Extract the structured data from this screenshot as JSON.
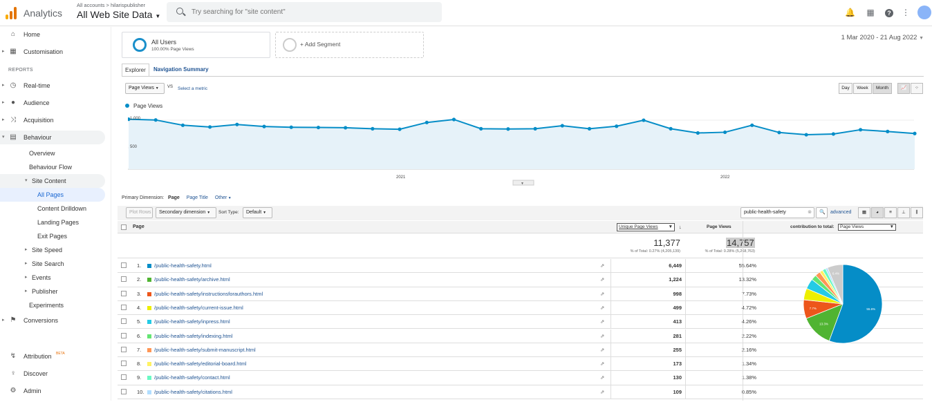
{
  "topbar": {
    "app_name": "Analytics",
    "crumb": "All accounts > hilarispublisher",
    "property": "All Web Site Data",
    "search_placeholder": "Try searching for \"site content\""
  },
  "sidebar": {
    "home": "Home",
    "customisation": "Customisation",
    "reports_header": "REPORTS",
    "realtime": "Real-time",
    "audience": "Audience",
    "acquisition": "Acquisition",
    "behaviour": "Behaviour",
    "overview": "Overview",
    "behaviour_flow": "Behaviour Flow",
    "site_content": "Site Content",
    "all_pages": "All Pages",
    "content_drilldown": "Content Drilldown",
    "landing_pages": "Landing Pages",
    "exit_pages": "Exit Pages",
    "site_speed": "Site Speed",
    "site_search": "Site Search",
    "events": "Events",
    "publisher": "Publisher",
    "experiments": "Experiments",
    "conversions": "Conversions",
    "attribution": "Attribution",
    "attribution_badge": "BETA",
    "discover": "Discover",
    "admin": "Admin"
  },
  "segments": {
    "all_users": "All Users",
    "all_users_pct": "100.00% Page Views",
    "add_segment": "+ Add Segment"
  },
  "date_range": "1 Mar 2020 - 21 Aug 2022",
  "tabs": {
    "explorer": "Explorer",
    "navigation_summary": "Navigation Summary"
  },
  "controls": {
    "metric": "Page Views",
    "vs": "VS",
    "select_metric": "Select a metric",
    "day": "Day",
    "week": "Week",
    "month": "Month"
  },
  "dimension": {
    "label": "Primary Dimension:",
    "page": "Page",
    "page_title": "Page Title",
    "other": "Other"
  },
  "toolbar": {
    "plot_rows": "Plot Rows",
    "secondary_dimension": "Secondary dimension",
    "sort_type_label": "Sort Type:",
    "sort_type": "Default",
    "filter_value": "public-health-safety",
    "advanced": "advanced"
  },
  "table": {
    "header": {
      "page": "Page",
      "unique_page_views": "Unique Page Views",
      "page_views": "Page Views",
      "contribution_label": "contribution to total:",
      "contribution_metric": "Page Views"
    },
    "totals": {
      "unique": "11,377",
      "unique_pct": "% of Total: 0.27% (4,205,139)",
      "views": "14,757",
      "views_pct": "% of Total: 0.28% (5,268,763)"
    },
    "rows": [
      {
        "n": "1.",
        "page": "/public-health-safety.html",
        "views": "6,449",
        "pct": "55.64%",
        "color": "#058dc7"
      },
      {
        "n": "2.",
        "page": "/public-health-safety/archive.html",
        "views": "1,224",
        "pct": "13.32%",
        "color": "#50b432"
      },
      {
        "n": "3.",
        "page": "/public-health-safety/instructionsforauthors.html",
        "views": "998",
        "pct": "7.73%",
        "color": "#ed561b"
      },
      {
        "n": "4.",
        "page": "/public-health-safety/current-issue.html",
        "views": "499",
        "pct": "4.72%",
        "color": "#edef00"
      },
      {
        "n": "5.",
        "page": "/public-health-safety/inpress.html",
        "views": "413",
        "pct": "4.26%",
        "color": "#24cbe5"
      },
      {
        "n": "6.",
        "page": "/public-health-safety/indexing.html",
        "views": "281",
        "pct": "2.22%",
        "color": "#64e572"
      },
      {
        "n": "7.",
        "page": "/public-health-safety/submit-manuscript.html",
        "views": "255",
        "pct": "2.16%",
        "color": "#ff9655"
      },
      {
        "n": "8.",
        "page": "/public-health-safety/editorial-board.html",
        "views": "173",
        "pct": "1.34%",
        "color": "#fff263"
      },
      {
        "n": "9.",
        "page": "/public-health-safety/contact.html",
        "views": "130",
        "pct": "1.38%",
        "color": "#6af9c4"
      },
      {
        "n": "10.",
        "page": "/public-health-safety/citations.html",
        "views": "109",
        "pct": "0.85%",
        "color": "#b2deff"
      }
    ]
  },
  "pie": {
    "other_color": "#cccccc",
    "labels": {
      "first": "55.6%",
      "second": "13.3%",
      "third": "7.7%",
      "other": "6.4%"
    }
  },
  "chart_data": {
    "type": "line",
    "series": [
      {
        "name": "Page Views",
        "values": [
          1000,
          985,
          880,
          845,
          895,
          855,
          840,
          835,
          830,
          810,
          800,
          935,
          995,
          810,
          805,
          810,
          870,
          810,
          860,
          980,
          810,
          725,
          740,
          880,
          735,
          690,
          705,
          790,
          755,
          715
        ]
      }
    ],
    "x_ticks": [
      "2021",
      "2022"
    ],
    "y_ticks": [
      "1,000",
      "500"
    ],
    "ylim": [
      0,
      1050
    ],
    "color": "#058dc7"
  }
}
